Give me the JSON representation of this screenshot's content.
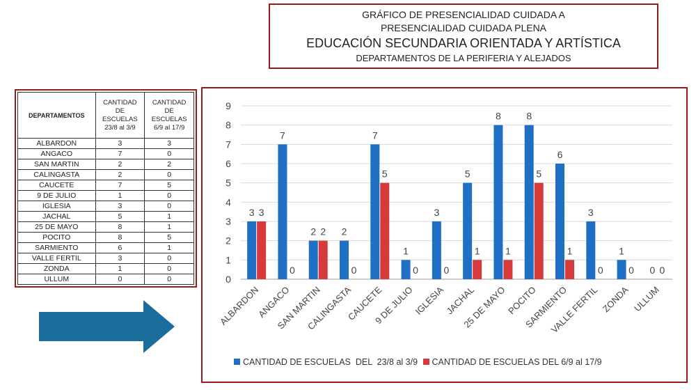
{
  "header": {
    "line1": "GRÁFICO DE PRESENCIALIDAD CUIDADA A",
    "line2": "PRESENCIALIDAD CUIDADA PLENA",
    "line3": "EDUCACIÓN SECUNDARIA ORIENTADA Y ARTÍSTICA",
    "line4": "DEPARTAMENTOS DE LA PERIFERIA Y ALEJADOS"
  },
  "table": {
    "col0": "DEPARTAMENTOS",
    "col1": [
      "CANTIDAD",
      "DE",
      "ESCUELAS",
      "23/8 al 3/9"
    ],
    "col2": [
      "CANTIDAD",
      "DE",
      "ESCUELAS",
      "6/9 al 17/9"
    ],
    "rows": [
      [
        "ALBARDON",
        "3",
        "3"
      ],
      [
        "ANGACO",
        "7",
        "0"
      ],
      [
        "SAN MARTIN",
        "2",
        "2"
      ],
      [
        "CALINGASTA",
        "2",
        "0"
      ],
      [
        "CAUCETE",
        "7",
        "5"
      ],
      [
        "9 DE JULIO",
        "1",
        "0"
      ],
      [
        "IGLESIA",
        "3",
        "0"
      ],
      [
        "JACHAL",
        "5",
        "1"
      ],
      [
        "25 DE MAYO",
        "8",
        "1"
      ],
      [
        "POCITO",
        "8",
        "5"
      ],
      [
        "SARMIENTO",
        "6",
        "1"
      ],
      [
        "VALLE FERTIL",
        "3",
        "0"
      ],
      [
        "ZONDA",
        "1",
        "0"
      ],
      [
        "ULLUM",
        "0",
        "0"
      ]
    ]
  },
  "colors": {
    "blue": "#1f6fc5",
    "red": "#d63a3a",
    "border": "#9b1b1b",
    "arrow": "#1b6d9b"
  },
  "chart_data": {
    "type": "bar",
    "categories": [
      "ALBARDON",
      "ANGACO",
      "SAN MARTIN",
      "CALINGASTA",
      "CAUCETE",
      "9 DE JULIO",
      "IGLESIA",
      "JACHAL",
      "25 DE MAYO",
      "POCITO",
      "SARMIENTO",
      "VALLE FERTIL",
      "ZONDA",
      "ULLUM"
    ],
    "series": [
      {
        "name": "CANTIDAD DE ESCUELAS  DEL  23/8 al 3/9",
        "values": [
          3,
          7,
          2,
          2,
          7,
          1,
          3,
          5,
          8,
          8,
          6,
          3,
          1,
          0
        ]
      },
      {
        "name": "CANTIDAD DE ESCUELAS DEL 6/9 al 17/9",
        "values": [
          3,
          0,
          2,
          0,
          5,
          0,
          0,
          1,
          1,
          5,
          1,
          0,
          0,
          0
        ]
      }
    ],
    "y_ticks": [
      "0",
      "1",
      "2",
      "3",
      "4",
      "5",
      "6",
      "7",
      "8",
      "9"
    ],
    "ylim": [
      0,
      9
    ],
    "grid": true,
    "legend": "bottom"
  }
}
